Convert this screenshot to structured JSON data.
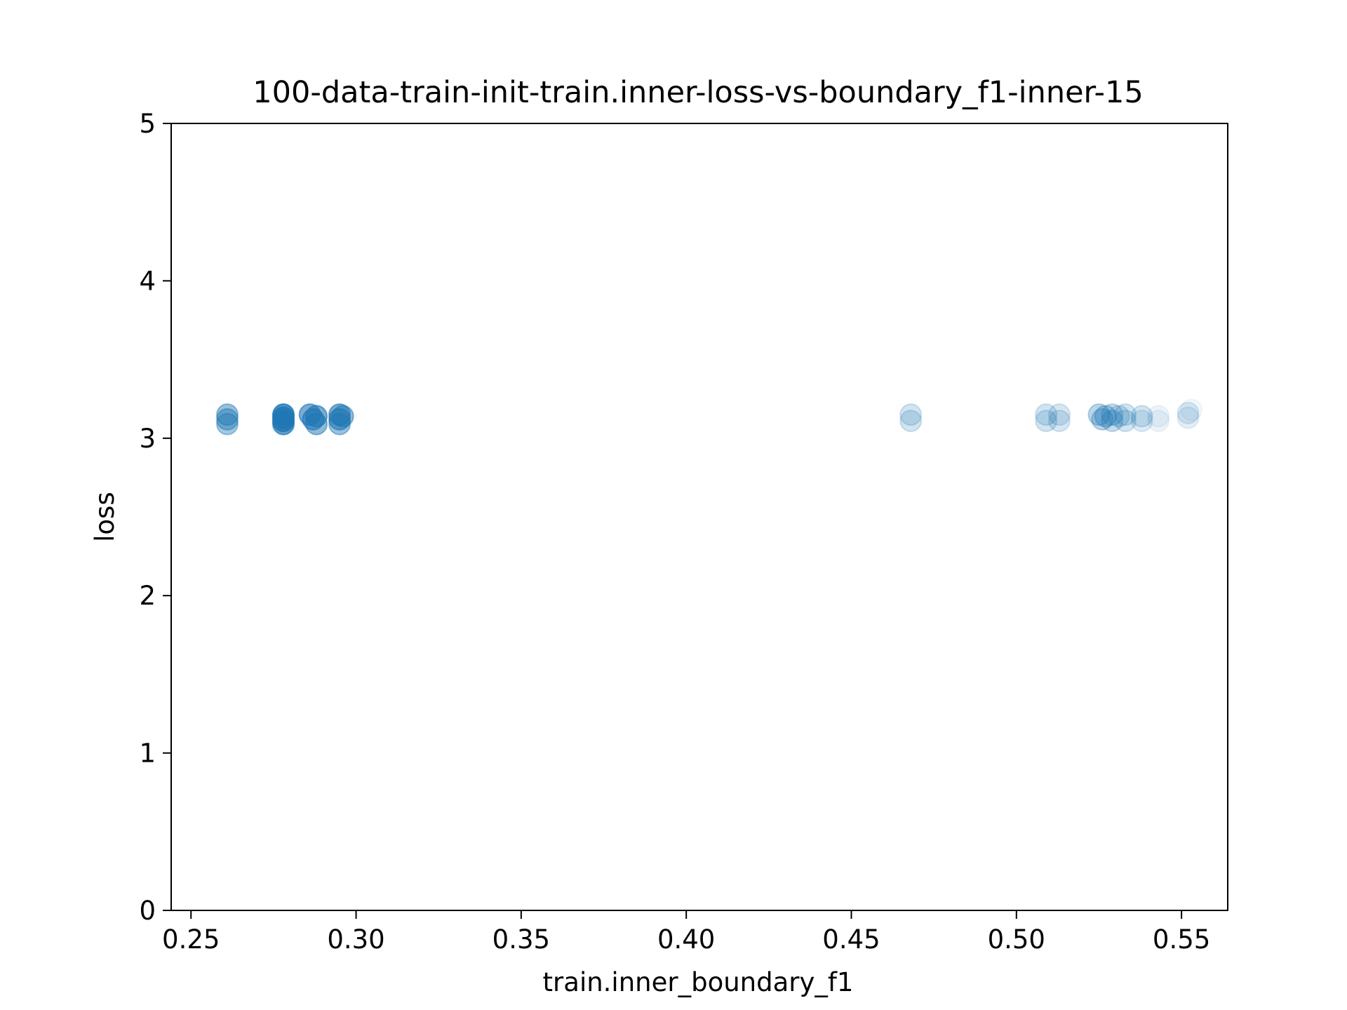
{
  "chart_data": {
    "type": "scatter",
    "title": "100-data-train-init-train.inner-loss-vs-boundary_f1-inner-15",
    "xlabel": "train.inner_boundary_f1",
    "ylabel": "loss",
    "xlim": [
      0.244,
      0.564
    ],
    "ylim": [
      0,
      5
    ],
    "xticks": [
      "0.25",
      "0.30",
      "0.35",
      "0.40",
      "0.45",
      "0.50",
      "0.55"
    ],
    "yticks": [
      "0",
      "1",
      "2",
      "3",
      "4",
      "5"
    ],
    "grid": false,
    "marker_color": "#1f77b4",
    "series": [
      {
        "points": [
          {
            "x": 0.261,
            "y": 3.15,
            "a": 0.45
          },
          {
            "x": 0.261,
            "y": 3.12,
            "a": 0.45
          },
          {
            "x": 0.261,
            "y": 3.09,
            "a": 0.4
          },
          {
            "x": 0.278,
            "y": 3.15,
            "a": 0.8
          },
          {
            "x": 0.278,
            "y": 3.13,
            "a": 0.8
          },
          {
            "x": 0.278,
            "y": 3.11,
            "a": 0.8
          },
          {
            "x": 0.278,
            "y": 3.09,
            "a": 0.7
          },
          {
            "x": 0.286,
            "y": 3.15,
            "a": 0.6
          },
          {
            "x": 0.287,
            "y": 3.12,
            "a": 0.6
          },
          {
            "x": 0.288,
            "y": 3.14,
            "a": 0.6
          },
          {
            "x": 0.288,
            "y": 3.09,
            "a": 0.5
          },
          {
            "x": 0.295,
            "y": 3.15,
            "a": 0.6
          },
          {
            "x": 0.295,
            "y": 3.12,
            "a": 0.6
          },
          {
            "x": 0.296,
            "y": 3.14,
            "a": 0.5
          },
          {
            "x": 0.295,
            "y": 3.09,
            "a": 0.45
          },
          {
            "x": 0.468,
            "y": 3.15,
            "a": 0.2
          },
          {
            "x": 0.468,
            "y": 3.11,
            "a": 0.2
          },
          {
            "x": 0.509,
            "y": 3.15,
            "a": 0.2
          },
          {
            "x": 0.509,
            "y": 3.11,
            "a": 0.2
          },
          {
            "x": 0.513,
            "y": 3.15,
            "a": 0.18
          },
          {
            "x": 0.513,
            "y": 3.11,
            "a": 0.18
          },
          {
            "x": 0.525,
            "y": 3.15,
            "a": 0.3
          },
          {
            "x": 0.526,
            "y": 3.12,
            "a": 0.3
          },
          {
            "x": 0.527,
            "y": 3.14,
            "a": 0.3
          },
          {
            "x": 0.529,
            "y": 3.15,
            "a": 0.25
          },
          {
            "x": 0.529,
            "y": 3.11,
            "a": 0.25
          },
          {
            "x": 0.531,
            "y": 3.14,
            "a": 0.2
          },
          {
            "x": 0.533,
            "y": 3.15,
            "a": 0.2
          },
          {
            "x": 0.533,
            "y": 3.11,
            "a": 0.2
          },
          {
            "x": 0.538,
            "y": 3.14,
            "a": 0.2
          },
          {
            "x": 0.538,
            "y": 3.11,
            "a": 0.15
          },
          {
            "x": 0.543,
            "y": 3.14,
            "a": 0.08
          },
          {
            "x": 0.543,
            "y": 3.11,
            "a": 0.08
          },
          {
            "x": 0.552,
            "y": 3.16,
            "a": 0.15
          },
          {
            "x": 0.552,
            "y": 3.13,
            "a": 0.12
          },
          {
            "x": 0.553,
            "y": 3.18,
            "a": 0.06
          }
        ]
      }
    ]
  }
}
